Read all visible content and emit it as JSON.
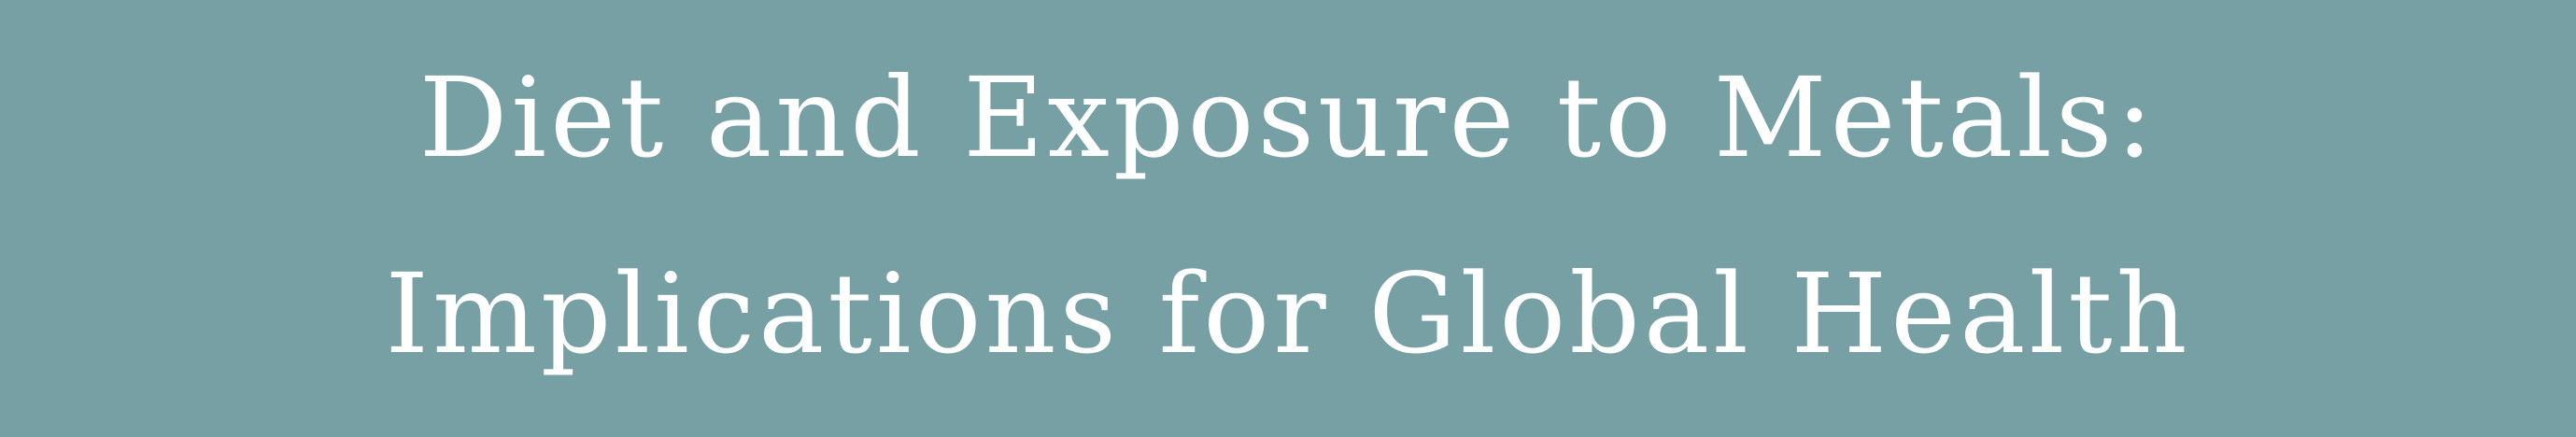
{
  "banner": {
    "background_color": "#77a0a5",
    "text_color": "#ffffff",
    "title_line_1": "Diet and Exposure to Metals:",
    "title_line_2": "Implications for Global Health"
  }
}
